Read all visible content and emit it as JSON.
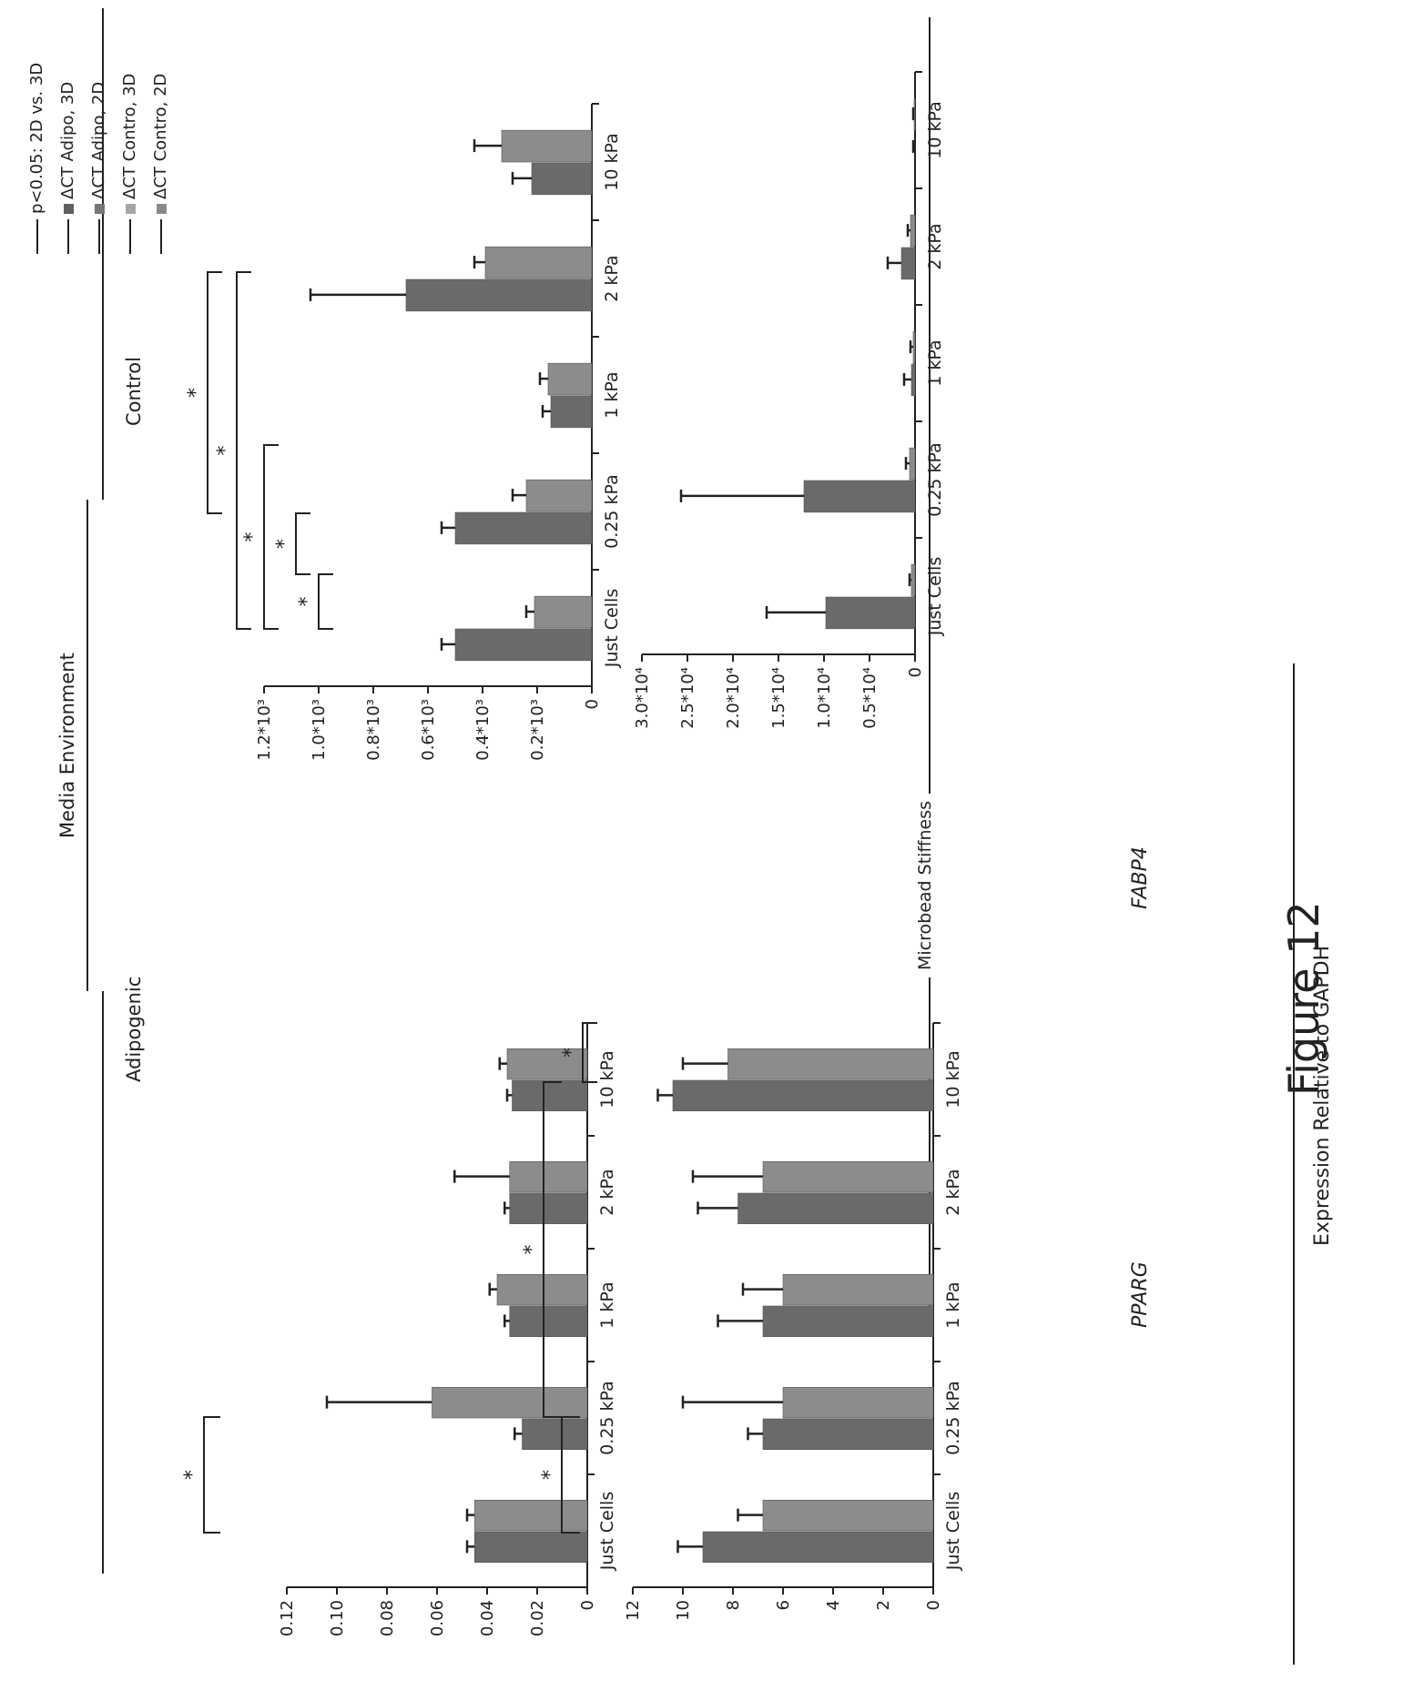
{
  "figure_title": "Figure 12",
  "y_axis_label": "Expression Relative to GAPDH",
  "x_axis_label": "Microbead Stiffness",
  "header": {
    "media_label": "Media Environment",
    "adipo_label": "Adipogenic",
    "control_label": "Control"
  },
  "legend": [
    {
      "label": "p<0.05: 2D vs. 3D",
      "color": "",
      "kind": "line"
    },
    {
      "label": "ΔCT Adipo, 3D",
      "color": "#5f5f5f",
      "kind": "swatch"
    },
    {
      "label": "ΔCT Adipo, 2D",
      "color": "#767676",
      "kind": "swatch"
    },
    {
      "label": "ΔCT Contro, 3D",
      "color": "#a6a6a6",
      "kind": "swatch"
    },
    {
      "label": "ΔCT Contro, 2D",
      "color": "#8a8a8a",
      "kind": "swatch"
    }
  ],
  "colors": {
    "bar_adipo": "#6a6a6a",
    "bar_control": "#8c8c8c",
    "axis": "#222222"
  },
  "chart_data": [
    {
      "id": "pparg-adipo",
      "type": "bar",
      "gene": "PPARG",
      "media": "Adipogenic",
      "categories": [
        "Just Cells",
        "0.25 kPa",
        "1 kPa",
        "2 kPa",
        "10 kPa"
      ],
      "series": [
        {
          "values": [
            0.045,
            0.026,
            0.031,
            0.031,
            0.03
          ],
          "errors": [
            0.003,
            0.003,
            0.002,
            0.002,
            0.002
          ]
        },
        {
          "values": [
            0.045,
            0.062,
            0.036,
            0.031,
            0.032
          ],
          "errors": [
            0.003,
            0.042,
            0.003,
            0.022,
            0.003
          ]
        }
      ],
      "yticks": [
        "0",
        "0.02",
        "0.04",
        "0.06",
        "0.08",
        "0.10",
        "0.12"
      ],
      "ylim": [
        0,
        0.12
      ],
      "ylabel": "PPARG",
      "annotations": [
        "*"
      ]
    },
    {
      "id": "pparg-control",
      "type": "bar",
      "gene": "PPARG",
      "media": "Control",
      "categories": [
        "Just Cells",
        "0.25 kPa",
        "1 kPa",
        "2 kPa",
        "10 kPa"
      ],
      "series": [
        {
          "values": [
            0.5,
            0.5,
            0.15,
            0.68,
            0.22
          ],
          "errors": [
            0.05,
            0.05,
            0.03,
            0.35,
            0.07
          ]
        },
        {
          "values": [
            0.21,
            0.24,
            0.16,
            0.39,
            0.33
          ],
          "errors": [
            0.03,
            0.05,
            0.03,
            0.04,
            0.1
          ]
        }
      ],
      "yticks": [
        "0",
        "0.2*10³",
        "0.4*10³",
        "0.6*10³",
        "0.8*10³",
        "1.0*10³",
        "1.2*10³"
      ],
      "ylim": [
        0,
        1.2
      ],
      "annotations": [
        "*",
        "*",
        "*",
        "*",
        "*"
      ]
    },
    {
      "id": "fabp4-adipo",
      "type": "bar",
      "gene": "FABP4",
      "media": "Adipogenic",
      "categories": [
        "Just Cells",
        "0.25 kPa",
        "1 kPa",
        "2 kPa",
        "10 kPa"
      ],
      "series": [
        {
          "values": [
            9.2,
            6.8,
            6.8,
            7.8,
            10.4
          ],
          "errors": [
            1.0,
            0.6,
            1.8,
            1.6,
            0.6
          ]
        },
        {
          "values": [
            6.8,
            6.0,
            6.0,
            6.8,
            8.2
          ],
          "errors": [
            1.0,
            4.0,
            1.6,
            2.8,
            1.8
          ]
        }
      ],
      "yticks": [
        "0",
        "2",
        "4",
        "6",
        "8",
        "10",
        "12"
      ],
      "ylim": [
        0,
        12
      ],
      "ylabel": "FABP4",
      "annotations": [
        "*",
        "*",
        "*"
      ]
    },
    {
      "id": "fabp4-control",
      "type": "bar",
      "gene": "FABP4",
      "media": "Control",
      "categories": [
        "Just Cells",
        "0.25 kPa",
        "1 kPa",
        "2 kPa",
        "10 kPa"
      ],
      "series": [
        {
          "values": [
            0.98,
            1.22,
            0.04,
            0.15,
            0.0
          ],
          "errors": [
            0.65,
            1.35,
            0.08,
            0.15,
            0.02
          ]
        },
        {
          "values": [
            0.04,
            0.06,
            0.02,
            0.05,
            0.01
          ],
          "errors": [
            0.02,
            0.04,
            0.03,
            0.03,
            0.01
          ]
        }
      ],
      "yticks": [
        "0",
        "0.5*10⁴",
        "1.0*10⁴",
        "1.5*10⁴",
        "2.0*10⁴",
        "2.5*10⁴",
        "3.0*10⁴"
      ],
      "ylim": [
        0,
        3.0
      ],
      "annotations": []
    }
  ]
}
